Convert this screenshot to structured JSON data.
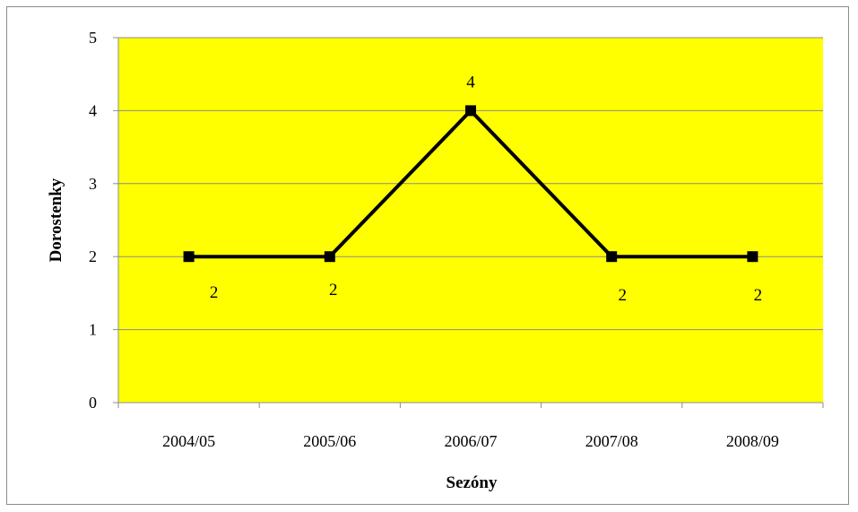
{
  "chart_data": {
    "type": "line",
    "categories": [
      "2004/05",
      "2005/06",
      "2006/07",
      "2007/08",
      "2008/09"
    ],
    "values": [
      2,
      2,
      4,
      2,
      2
    ],
    "data_labels": [
      "2",
      "2",
      "4",
      "2",
      "2"
    ],
    "xlabel": "Sezóny",
    "ylabel": "Dorostenky",
    "ylim": [
      0,
      5
    ],
    "yticks": [
      0,
      1,
      2,
      3,
      4,
      5
    ],
    "grid": true,
    "legend": "none",
    "colors": {
      "plot_background": "#ffff00",
      "line": "#000000",
      "marker": "#000000",
      "gridline": "#8c8c8c"
    }
  }
}
